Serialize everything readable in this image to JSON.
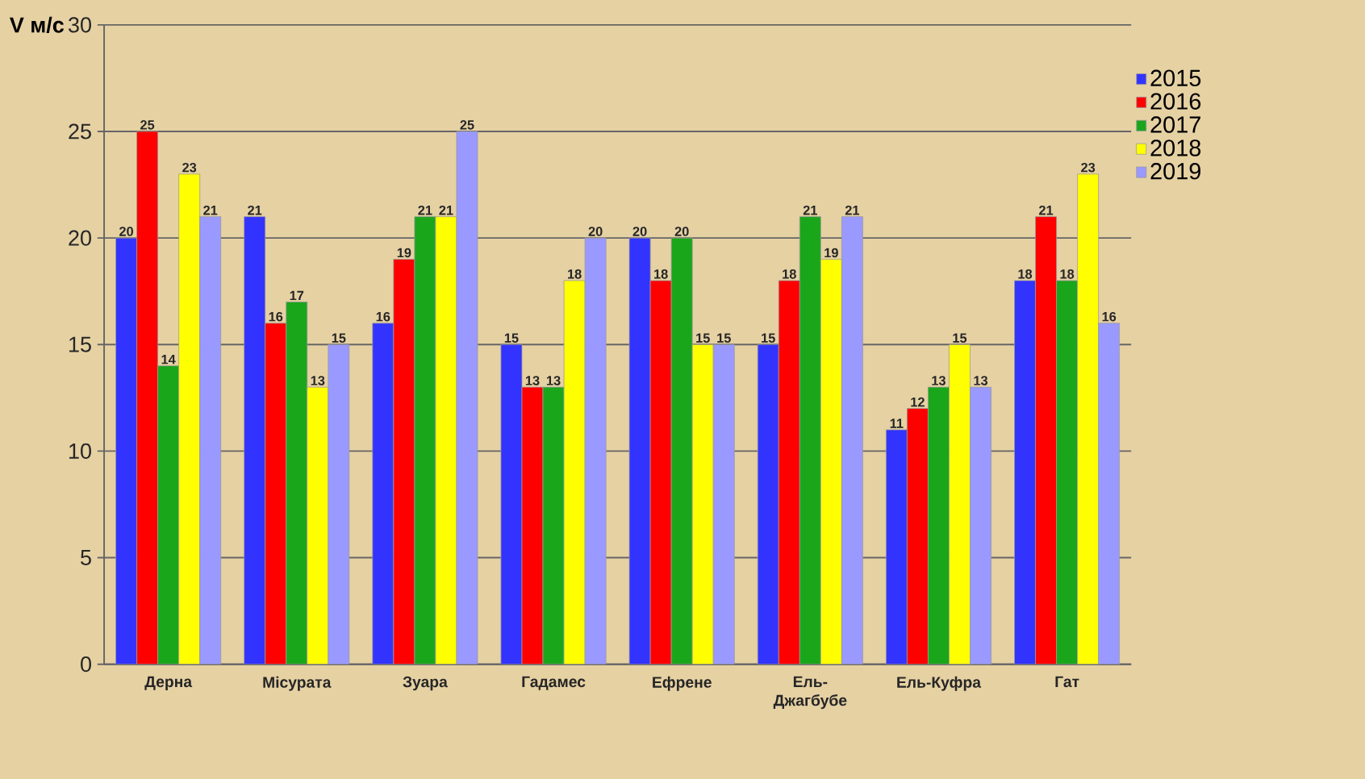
{
  "chart_data": {
    "type": "bar",
    "ylabel": "V м/с",
    "categories": [
      "Дерна",
      "Місурата",
      "Зуара",
      "Гадамес",
      "Ефрене",
      "Ель-Джагбубе",
      "Ель-Куфра",
      "Гат"
    ],
    "series": [
      {
        "name": "2015",
        "color": "#3333ff",
        "values": [
          20,
          21,
          16,
          15,
          20,
          15,
          11,
          18
        ]
      },
      {
        "name": "2016",
        "color": "#ff0000",
        "values": [
          25,
          16,
          19,
          13,
          18,
          18,
          12,
          21
        ]
      },
      {
        "name": "2017",
        "color": "#1aa61a",
        "values": [
          14,
          17,
          21,
          13,
          20,
          21,
          13,
          18
        ]
      },
      {
        "name": "2018",
        "color": "#ffff00",
        "values": [
          23,
          13,
          21,
          18,
          15,
          19,
          15,
          23
        ]
      },
      {
        "name": "2019",
        "color": "#9999ff",
        "values": [
          21,
          15,
          25,
          20,
          15,
          21,
          13,
          16
        ]
      }
    ],
    "ylim": [
      0,
      30
    ],
    "yticks": [
      0,
      5,
      10,
      15,
      20,
      25,
      30
    ],
    "grid": "y",
    "legend": "top right",
    "data_labels": true
  }
}
